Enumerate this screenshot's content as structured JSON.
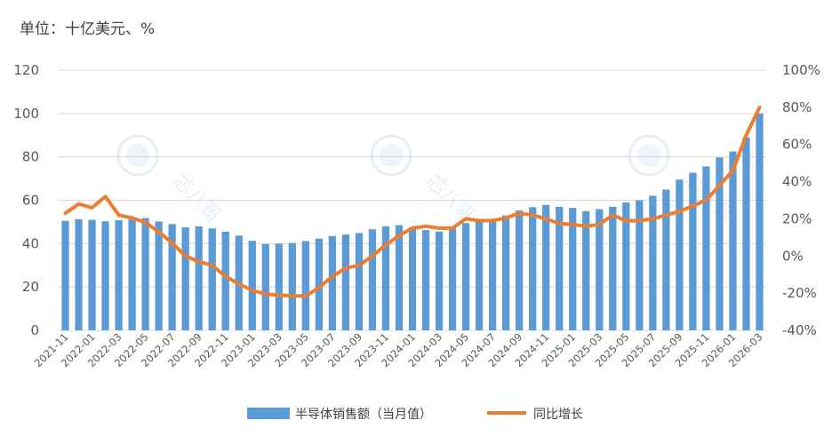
{
  "unit_label": "单位：十亿美元、%",
  "colors": {
    "bar": "#5b9bd5",
    "line": "#ed7d31",
    "grid": "#d9d9d9"
  },
  "chart_data": {
    "type": "bar+line",
    "categories": [
      "2021-11",
      "2021-12",
      "2022-01",
      "2022-02",
      "2022-03",
      "2022-04",
      "2022-05",
      "2022-06",
      "2022-07",
      "2022-08",
      "2022-09",
      "2022-10",
      "2022-11",
      "2022-12",
      "2023-01",
      "2023-02",
      "2023-03",
      "2023-04",
      "2023-05",
      "2023-06",
      "2023-07",
      "2023-08",
      "2023-09",
      "2023-10",
      "2023-11",
      "2023-12",
      "2024-01",
      "2024-02",
      "2024-03",
      "2024-04",
      "2024-05",
      "2024-06",
      "2024-07",
      "2024-08",
      "2024-09",
      "2024-10",
      "2024-11",
      "2024-12",
      "2025-01",
      "2025-02",
      "2025-03",
      "2025-04",
      "2025-05",
      "2025-06",
      "2025-07",
      "2025-08",
      "2025-09",
      "2025-10",
      "2025-11",
      "2025-12",
      "2026-01",
      "2026-02",
      "2026-03"
    ],
    "series": [
      {
        "name": "半导体销售额（当月值）",
        "type": "bar",
        "axis": "left",
        "values": [
          50.5,
          51.2,
          51.0,
          50.3,
          50.8,
          51.5,
          51.8,
          50.2,
          49.0,
          47.5,
          48.0,
          47.0,
          45.5,
          43.7,
          41.3,
          39.8,
          40.0,
          40.3,
          41.2,
          42.3,
          43.5,
          44.2,
          44.9,
          46.6,
          48.0,
          48.5,
          47.6,
          46.3,
          45.6,
          47.0,
          49.5,
          50.3,
          51.5,
          53.0,
          55.3,
          56.8,
          57.8,
          57.0,
          56.5,
          55.0,
          55.9,
          57.0,
          59.0,
          60.0,
          62.1,
          64.9,
          69.5,
          72.7,
          75.6,
          79.7,
          82.5,
          89.0,
          100.0
        ]
      },
      {
        "name": "同比增长",
        "type": "line",
        "axis": "right",
        "values": [
          23.0,
          28.0,
          26.0,
          32.0,
          22.0,
          20.5,
          18.0,
          13.0,
          7.0,
          0.0,
          -3.0,
          -5.0,
          -11.0,
          -15.0,
          -18.5,
          -20.5,
          -21.0,
          -21.5,
          -21.5,
          -17.0,
          -11.0,
          -6.5,
          -5.0,
          0.0,
          6.0,
          11.0,
          15.0,
          16.0,
          15.0,
          15.0,
          20.0,
          19.0,
          19.0,
          20.5,
          23.0,
          22.0,
          20.0,
          17.5,
          17.0,
          16.0,
          17.0,
          22.0,
          19.0,
          19.0,
          20.0,
          22.0,
          24.0,
          27.0,
          30.0,
          38.0,
          46.0,
          65.0,
          80.0
        ]
      }
    ],
    "x_tick_labels": [
      "2021-11",
      "2022-01",
      "2022-03",
      "2022-05",
      "2022-07",
      "2022-09",
      "2022-11",
      "2023-01",
      "2023-03",
      "2023-05",
      "2023-07",
      "2023-09",
      "2023-11",
      "2024-01",
      "2024-03",
      "2024-05",
      "2024-07",
      "2024-09",
      "2024-11",
      "2025-01",
      "2025-03",
      "2025-05",
      "2025-07",
      "2025-09",
      "2025-11",
      "2026-01",
      "2026-03"
    ],
    "y_left": {
      "min": 0,
      "max": 120,
      "ticks": [
        "0",
        "20",
        "40",
        "60",
        "80",
        "100",
        "120"
      ]
    },
    "y_right": {
      "min": -40,
      "max": 100,
      "ticks": [
        "-40%",
        "-20%",
        "0%",
        "20%",
        "40%",
        "60%",
        "80%",
        "100%"
      ]
    },
    "grid": true,
    "legend_position": "bottom",
    "watermark": "芯八哥"
  }
}
